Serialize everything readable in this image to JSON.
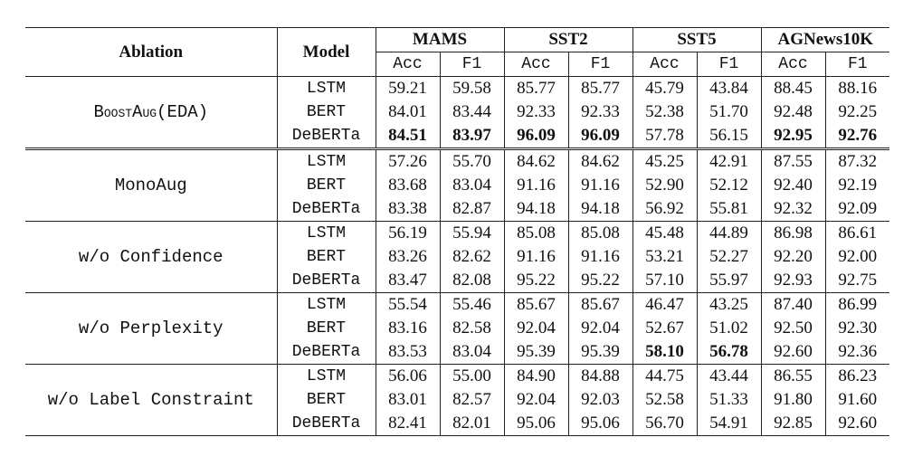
{
  "header": {
    "ablation": "Ablation",
    "model": "Model",
    "datasets": [
      "MAMS",
      "SST2",
      "SST5",
      "AGNews10K"
    ],
    "metrics": [
      "Acc",
      "F1",
      "Acc",
      "F1",
      "Acc",
      "F1",
      "Acc",
      "F1"
    ]
  },
  "groups": [
    {
      "name": "BoostAug(EDA)",
      "rows": [
        {
          "model": "LSTM",
          "values": [
            "59.21",
            "59.58",
            "85.77",
            "85.77",
            "45.79",
            "43.84",
            "88.45",
            "88.16"
          ],
          "bold": []
        },
        {
          "model": "BERT",
          "values": [
            "84.01",
            "83.44",
            "92.33",
            "92.33",
            "52.38",
            "51.70",
            "92.48",
            "92.25"
          ],
          "bold": []
        },
        {
          "model": "DeBERTa",
          "values": [
            "84.51",
            "83.97",
            "96.09",
            "96.09",
            "57.78",
            "56.15",
            "92.95",
            "92.76"
          ],
          "bold": [
            0,
            1,
            2,
            3,
            6,
            7
          ]
        }
      ]
    },
    {
      "name": "MonoAug",
      "rows": [
        {
          "model": "LSTM",
          "values": [
            "57.26",
            "55.70",
            "84.62",
            "84.62",
            "45.25",
            "42.91",
            "87.55",
            "87.32"
          ],
          "bold": []
        },
        {
          "model": "BERT",
          "values": [
            "83.68",
            "83.04",
            "91.16",
            "91.16",
            "52.90",
            "52.12",
            "92.40",
            "92.19"
          ],
          "bold": []
        },
        {
          "model": "DeBERTa",
          "values": [
            "83.38",
            "82.87",
            "94.18",
            "94.18",
            "56.92",
            "55.81",
            "92.32",
            "92.09"
          ],
          "bold": []
        }
      ]
    },
    {
      "name": "w/o Confidence",
      "rows": [
        {
          "model": "LSTM",
          "values": [
            "56.19",
            "55.94",
            "85.08",
            "85.08",
            "45.48",
            "44.89",
            "86.98",
            "86.61"
          ],
          "bold": []
        },
        {
          "model": "BERT",
          "values": [
            "83.26",
            "82.62",
            "91.16",
            "91.16",
            "53.21",
            "52.27",
            "92.20",
            "92.00"
          ],
          "bold": []
        },
        {
          "model": "DeBERTa",
          "values": [
            "83.47",
            "82.08",
            "95.22",
            "95.22",
            "57.10",
            "55.97",
            "92.93",
            "92.75"
          ],
          "bold": []
        }
      ]
    },
    {
      "name": "w/o Perplexity",
      "rows": [
        {
          "model": "LSTM",
          "values": [
            "55.54",
            "55.46",
            "85.67",
            "85.67",
            "46.47",
            "43.25",
            "87.40",
            "86.99"
          ],
          "bold": []
        },
        {
          "model": "BERT",
          "values": [
            "83.16",
            "82.58",
            "92.04",
            "92.04",
            "52.67",
            "51.02",
            "92.50",
            "92.30"
          ],
          "bold": []
        },
        {
          "model": "DeBERTa",
          "values": [
            "83.53",
            "83.04",
            "95.39",
            "95.39",
            "58.10",
            "56.78",
            "92.60",
            "92.36"
          ],
          "bold": [
            4,
            5
          ]
        }
      ]
    },
    {
      "name": "w/o Label Constraint",
      "rows": [
        {
          "model": "LSTM",
          "values": [
            "56.06",
            "55.00",
            "84.90",
            "84.88",
            "44.75",
            "43.44",
            "86.55",
            "86.23"
          ],
          "bold": []
        },
        {
          "model": "BERT",
          "values": [
            "83.01",
            "82.57",
            "92.04",
            "92.03",
            "52.58",
            "51.33",
            "91.80",
            "91.60"
          ],
          "bold": []
        },
        {
          "model": "DeBERTa",
          "values": [
            "82.41",
            "82.01",
            "95.06",
            "95.06",
            "56.70",
            "54.91",
            "92.85",
            "92.60"
          ],
          "bold": []
        }
      ]
    }
  ]
}
